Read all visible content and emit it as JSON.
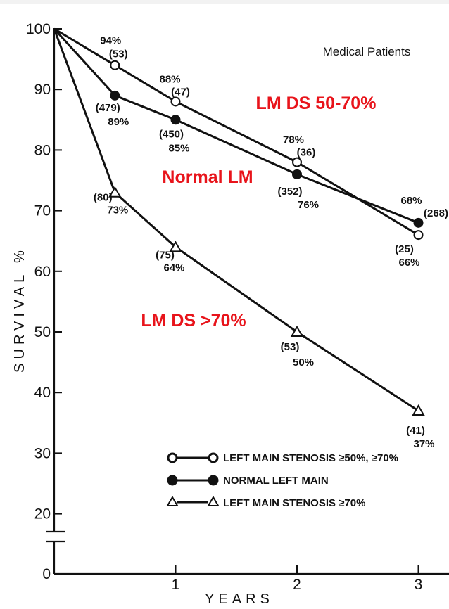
{
  "chart_data": {
    "type": "line",
    "title": "Medical Patients",
    "xlabel": "YEARS",
    "ylabel": "SURVIVAL %",
    "xlim": [
      0,
      3.2
    ],
    "ylim": [
      0,
      100
    ],
    "axis_break": "between 0 and 20",
    "y_ticks": [
      {
        "value": 100,
        "label": "100"
      },
      {
        "value": 90,
        "label": "90"
      },
      {
        "value": 80,
        "label": "80"
      },
      {
        "value": 70,
        "label": "70"
      },
      {
        "value": 60,
        "label": "60"
      },
      {
        "value": 50,
        "label": "50"
      },
      {
        "value": 40,
        "label": "40"
      },
      {
        "value": 30,
        "label": "30"
      },
      {
        "value": 20,
        "label": "20"
      },
      {
        "value": 0,
        "label": "0"
      }
    ],
    "x_ticks": [
      {
        "value": 1,
        "label": "1"
      },
      {
        "value": 2,
        "label": "2"
      },
      {
        "value": 3,
        "label": "3"
      }
    ],
    "series": [
      {
        "name": "LEFT MAIN STENOSIS ≥50%, ≥70%",
        "marker": "open-circle",
        "points": [
          {
            "x": 0,
            "y": 100
          },
          {
            "x": 0.5,
            "y": 94,
            "pct": "94%",
            "n": "(53)"
          },
          {
            "x": 1,
            "y": 88,
            "pct": "88%",
            "n": "(47)"
          },
          {
            "x": 2,
            "y": 78,
            "pct": "78%",
            "n": "(36)"
          },
          {
            "x": 3,
            "y": 66,
            "pct": "66%",
            "n": "(25)"
          }
        ]
      },
      {
        "name": "NORMAL LEFT MAIN",
        "marker": "filled-circle",
        "points": [
          {
            "x": 0,
            "y": 100
          },
          {
            "x": 0.5,
            "y": 89,
            "pct": "89%",
            "n": "(479)"
          },
          {
            "x": 1,
            "y": 85,
            "pct": "85%",
            "n": "(450)"
          },
          {
            "x": 2,
            "y": 76,
            "pct": "76%",
            "n": "(352)"
          },
          {
            "x": 3,
            "y": 68,
            "pct": "68%",
            "n": "(268)"
          }
        ]
      },
      {
        "name": "LEFT MAIN STENOSIS ≥70%",
        "marker": "open-triangle",
        "points": [
          {
            "x": 0,
            "y": 100
          },
          {
            "x": 0.5,
            "y": 73,
            "pct": "73%",
            "n": "(80)"
          },
          {
            "x": 1,
            "y": 64,
            "pct": "64%",
            "n": "(75)"
          },
          {
            "x": 2,
            "y": 50,
            "pct": "50%",
            "n": "(53)"
          },
          {
            "x": 3,
            "y": 37,
            "pct": "37%",
            "n": "(41)"
          }
        ]
      }
    ],
    "annotations": [
      "LM DS 50-70%",
      "Normal LM",
      "LM DS >70%"
    ],
    "annotation_color": "#e8141b",
    "line_color": "#111111",
    "grid": false,
    "legend_position": "bottom-right"
  }
}
